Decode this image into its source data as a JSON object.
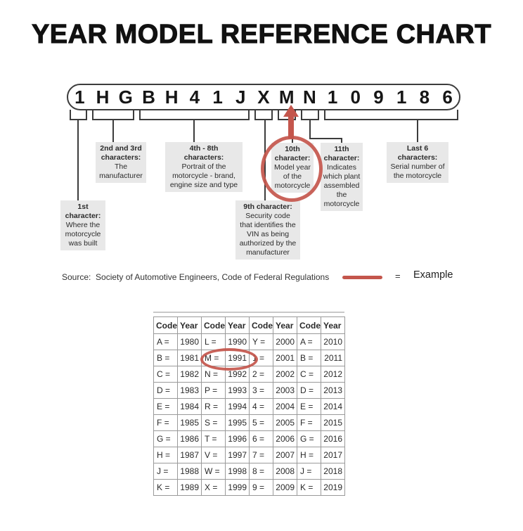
{
  "page": {
    "title": "YEAR MODEL REFERENCE CHART"
  },
  "vin": {
    "characters": [
      "1",
      "H",
      "G",
      "B",
      "H",
      "4",
      "1",
      "J",
      "X",
      "M",
      "N",
      "1",
      "0",
      "9",
      "1",
      "8",
      "6"
    ]
  },
  "callouts": {
    "first": {
      "title_lines": [
        "1st",
        "character:"
      ],
      "body_lines": [
        "Where the",
        "motorcycle",
        "was built"
      ]
    },
    "second_third": {
      "title_lines": [
        "2nd and 3rd",
        "characters:"
      ],
      "body_lines": [
        "The",
        "manufacturer"
      ]
    },
    "fourth_eighth": {
      "title_lines": [
        "4th - 8th",
        "characters:"
      ],
      "body_lines": [
        "Portrait of the",
        "motorcycle - brand,",
        "engine size and type"
      ]
    },
    "ninth": {
      "title_lines": [
        "9th character:"
      ],
      "body_lines": [
        "Security code",
        "that identifies the",
        "VIN as being",
        "authorized by the",
        "manufacturer"
      ]
    },
    "tenth": {
      "title_lines": [
        "10th",
        "character:"
      ],
      "body_lines": [
        "Model year",
        "of the",
        "motorcycle"
      ]
    },
    "eleventh": {
      "title_lines": [
        "11th",
        "character:"
      ],
      "body_lines": [
        "Indicates",
        "which plant",
        "assembled",
        "the",
        "motorcycle"
      ]
    },
    "last_six": {
      "title_lines": [
        "Last 6",
        "characters:"
      ],
      "body_lines": [
        "Serial number of",
        "the motorcycle"
      ]
    }
  },
  "source": {
    "text": "Source:  Society of Automotive Engineers, Code of Federal Regulations"
  },
  "legend": {
    "equals": "=",
    "label": "Example"
  },
  "table": {
    "headers": [
      "Code",
      "Year",
      "Code",
      "Year",
      "Code",
      "Year",
      "Code",
      "Year"
    ],
    "rows": [
      [
        "A =",
        "1980",
        "L =",
        "1990",
        "Y =",
        "2000",
        "A =",
        "2010"
      ],
      [
        "B =",
        "1981",
        "M =",
        "1991",
        "1 =",
        "2001",
        "B =",
        "2011"
      ],
      [
        "C =",
        "1982",
        "N =",
        "1992",
        "2 =",
        "2002",
        "C =",
        "2012"
      ],
      [
        "D =",
        "1983",
        "P =",
        "1993",
        "3 =",
        "2003",
        "D =",
        "2013"
      ],
      [
        "E =",
        "1984",
        "R =",
        "1994",
        "4 =",
        "2004",
        "E =",
        "2014"
      ],
      [
        "F =",
        "1985",
        "S =",
        "1995",
        "5 =",
        "2005",
        "F =",
        "2015"
      ],
      [
        "G =",
        "1986",
        "T =",
        "1996",
        "6 =",
        "2006",
        "G =",
        "2016"
      ],
      [
        "H =",
        "1987",
        "V =",
        "1997",
        "7 =",
        "2007",
        "H =",
        "2017"
      ],
      [
        "J =",
        "1988",
        "W =",
        "1998",
        "8 =",
        "2008",
        "J =",
        "2018"
      ],
      [
        "K =",
        "1989",
        "X =",
        "1999",
        "9 =",
        "2009",
        "K =",
        "2019"
      ]
    ]
  },
  "colors": {
    "accent_red": "#c4564c",
    "callout_bg": "#e8e8e8"
  }
}
